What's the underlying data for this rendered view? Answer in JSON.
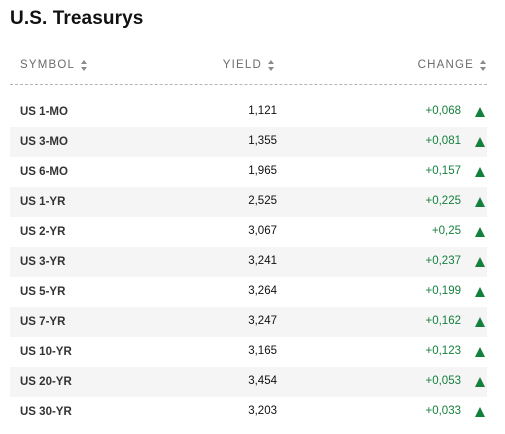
{
  "title": "U.S. Treasurys",
  "columns": {
    "symbol": "SYMBOL",
    "yield": "YIELD",
    "change": "CHANGE"
  },
  "colors": {
    "positive": "#157f3e",
    "alt_row": "#f5f5f5"
  },
  "rows": [
    {
      "symbol": "US 1-MO",
      "yield": "1,121",
      "change": "+0,068",
      "direction": "up-triangle-icon"
    },
    {
      "symbol": "US 3-MO",
      "yield": "1,355",
      "change": "+0,081",
      "direction": "up-triangle-icon"
    },
    {
      "symbol": "US 6-MO",
      "yield": "1,965",
      "change": "+0,157",
      "direction": "up-triangle-icon"
    },
    {
      "symbol": "US 1-YR",
      "yield": "2,525",
      "change": "+0,225",
      "direction": "up-triangle-icon"
    },
    {
      "symbol": "US 2-YR",
      "yield": "3,067",
      "change": "+0,25",
      "direction": "up-triangle-icon"
    },
    {
      "symbol": "US 3-YR",
      "yield": "3,241",
      "change": "+0,237",
      "direction": "up-triangle-icon"
    },
    {
      "symbol": "US 5-YR",
      "yield": "3,264",
      "change": "+0,199",
      "direction": "up-triangle-icon"
    },
    {
      "symbol": "US 7-YR",
      "yield": "3,247",
      "change": "+0,162",
      "direction": "up-triangle-icon"
    },
    {
      "symbol": "US 10-YR",
      "yield": "3,165",
      "change": "+0,123",
      "direction": "up-triangle-icon"
    },
    {
      "symbol": "US 20-YR",
      "yield": "3,454",
      "change": "+0,053",
      "direction": "up-triangle-icon"
    },
    {
      "symbol": "US 30-YR",
      "yield": "3,203",
      "change": "+0,033",
      "direction": "up-triangle-icon"
    }
  ]
}
